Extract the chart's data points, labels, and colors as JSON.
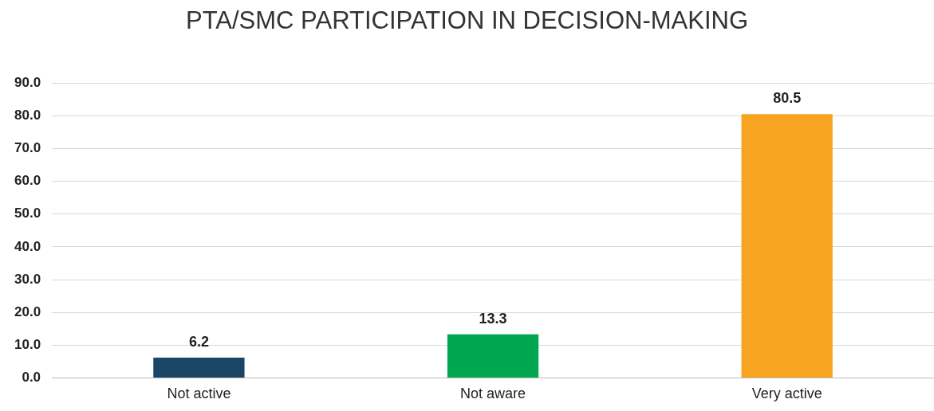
{
  "chart_data": {
    "type": "bar",
    "title": "PTA/SMC PARTICIPATION IN DECISION-MAKING",
    "categories": [
      "Not active",
      "Not aware",
      "Very active"
    ],
    "values": [
      6.2,
      13.3,
      80.5
    ],
    "colors": [
      "#1b4565",
      "#00a650",
      "#f7a520"
    ],
    "ylim": [
      0,
      90
    ],
    "yticks": [
      {
        "value": 0,
        "label": "0.0"
      },
      {
        "value": 10,
        "label": "10.0"
      },
      {
        "value": 20,
        "label": "20.0"
      },
      {
        "value": 30,
        "label": "30.0"
      },
      {
        "value": 40,
        "label": "40.0"
      },
      {
        "value": 50,
        "label": "50.0"
      },
      {
        "value": 60,
        "label": "60.0"
      },
      {
        "value": 70,
        "label": "70.0"
      },
      {
        "value": 80,
        "label": "80.0"
      },
      {
        "value": 90,
        "label": "90.0"
      }
    ],
    "grid": "y",
    "data_labels": true,
    "legend": false
  }
}
